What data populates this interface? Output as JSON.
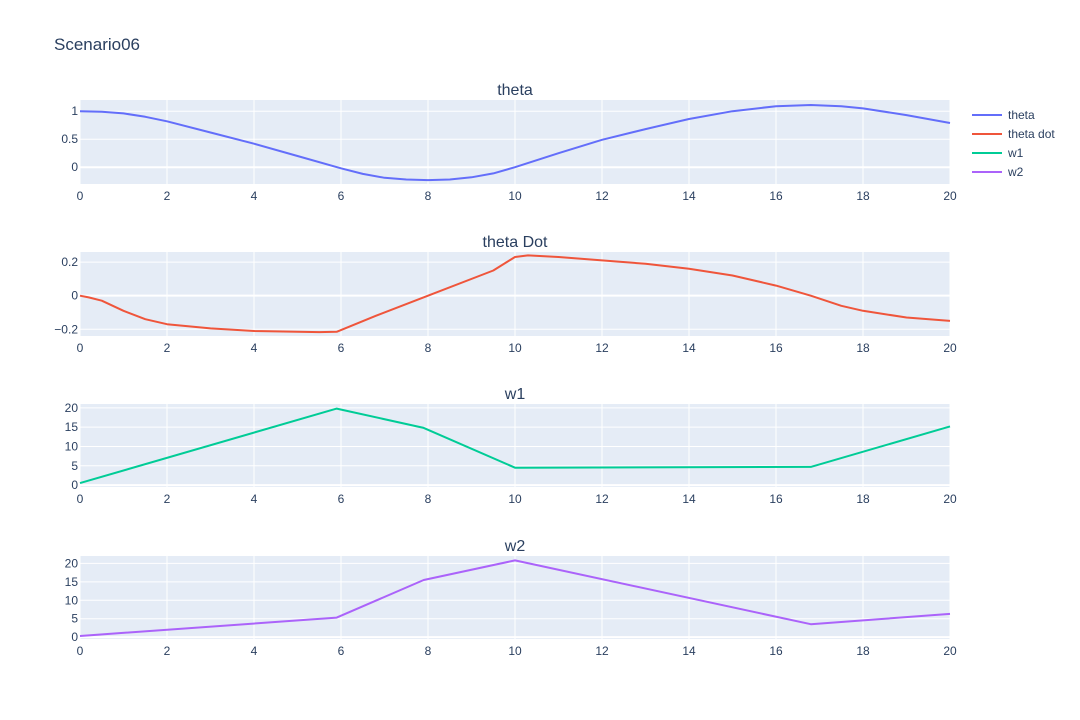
{
  "title": "Scenario06",
  "colors": {
    "plot_bg": "#e5ecf6",
    "grid": "#ffffff",
    "text": "#2a3f5f"
  },
  "legend": {
    "placement": "top-right",
    "items": [
      {
        "label": "theta",
        "color": "#636efa"
      },
      {
        "label": "theta dot",
        "color": "#ef553b"
      },
      {
        "label": "w1",
        "color": "#00cc96"
      },
      {
        "label": "w2",
        "color": "#ab63fa"
      }
    ]
  },
  "chart_data": [
    {
      "type": "line",
      "title": "theta",
      "xlim": [
        0,
        20
      ],
      "ylim": [
        -0.3,
        1.2
      ],
      "xticks": [
        0,
        2,
        4,
        6,
        8,
        10,
        12,
        14,
        16,
        18,
        20
      ],
      "yticks": [
        0,
        0.5,
        1
      ],
      "ytick_labels": [
        "0",
        "0.5",
        "1"
      ],
      "series": [
        {
          "name": "theta",
          "color": "#636efa",
          "x": [
            0,
            0.5,
            1,
            1.5,
            2,
            3,
            4,
            5,
            6,
            6.5,
            7,
            7.5,
            8,
            8.5,
            9,
            9.5,
            10,
            11,
            12,
            13,
            14,
            15,
            16,
            16.8,
            17.5,
            18,
            19,
            20
          ],
          "y": [
            1.0,
            0.99,
            0.96,
            0.9,
            0.82,
            0.62,
            0.42,
            0.2,
            -0.02,
            -0.12,
            -0.19,
            -0.22,
            -0.23,
            -0.22,
            -0.18,
            -0.11,
            0.0,
            0.25,
            0.49,
            0.68,
            0.86,
            1.0,
            1.09,
            1.11,
            1.09,
            1.05,
            0.93,
            0.79
          ]
        }
      ]
    },
    {
      "type": "line",
      "title": "theta Dot",
      "xlim": [
        0,
        20
      ],
      "ylim": [
        -0.24,
        0.26
      ],
      "xticks": [
        0,
        2,
        4,
        6,
        8,
        10,
        12,
        14,
        16,
        18,
        20
      ],
      "yticks": [
        -0.2,
        0,
        0.2
      ],
      "ytick_labels": [
        "−0.2",
        "0",
        "0.2"
      ],
      "series": [
        {
          "name": "theta dot",
          "color": "#ef553b",
          "x": [
            0,
            0.2,
            0.5,
            1,
            1.5,
            2,
            3,
            4,
            5,
            5.5,
            5.9,
            6.8,
            8,
            9.5,
            10,
            10.3,
            11,
            12,
            13,
            14,
            15,
            16,
            16.8,
            17.5,
            18,
            19,
            20
          ],
          "y": [
            0.0,
            -0.01,
            -0.03,
            -0.09,
            -0.14,
            -0.17,
            -0.195,
            -0.21,
            -0.215,
            -0.217,
            -0.215,
            -0.12,
            0.0,
            0.15,
            0.23,
            0.24,
            0.23,
            0.21,
            0.19,
            0.16,
            0.12,
            0.06,
            0.0,
            -0.06,
            -0.09,
            -0.13,
            -0.15
          ]
        }
      ]
    },
    {
      "type": "line",
      "title": "w1",
      "xlim": [
        0,
        20
      ],
      "ylim": [
        -0.5,
        21
      ],
      "xticks": [
        0,
        2,
        4,
        6,
        8,
        10,
        12,
        14,
        16,
        18,
        20
      ],
      "yticks": [
        0,
        5,
        10,
        15,
        20
      ],
      "ytick_labels": [
        "0",
        "5",
        "10",
        "15",
        "20"
      ],
      "series": [
        {
          "name": "w1",
          "color": "#00cc96",
          "x": [
            0,
            5.9,
            7.9,
            10,
            16.8,
            20
          ],
          "y": [
            0.5,
            19.8,
            14.8,
            4.5,
            4.7,
            15.2
          ]
        }
      ]
    },
    {
      "type": "line",
      "title": "w2",
      "xlim": [
        0,
        20
      ],
      "ylim": [
        -0.5,
        22
      ],
      "xticks": [
        0,
        2,
        4,
        6,
        8,
        10,
        12,
        14,
        16,
        18,
        20
      ],
      "yticks": [
        0,
        5,
        10,
        15,
        20
      ],
      "ytick_labels": [
        "0",
        "5",
        "10",
        "15",
        "20"
      ],
      "series": [
        {
          "name": "w2",
          "color": "#ab63fa",
          "x": [
            0,
            5.9,
            7.9,
            10,
            16.8,
            20
          ],
          "y": [
            0.3,
            5.3,
            15.5,
            20.8,
            3.5,
            6.3
          ]
        }
      ]
    }
  ]
}
